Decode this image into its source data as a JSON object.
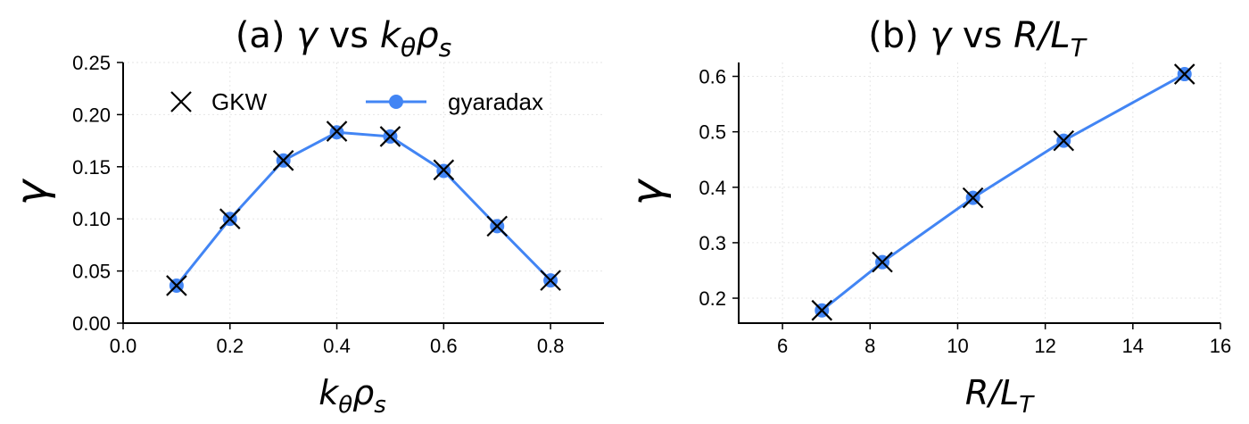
{
  "colors": {
    "line": "#4285f4",
    "marker_x": "#000000"
  },
  "chart_data": [
    {
      "type": "line",
      "title": "(a) γ vs kθρs",
      "title_parts": {
        "prefix": "(a) ",
        "sym": "γ",
        "mid": " vs ",
        "x": "k",
        "x_sub": "θ",
        "x2": "ρ",
        "x2_sub": "s"
      },
      "xlabel_parts": {
        "x": "k",
        "x_sub": "θ",
        "x2": "ρ",
        "x2_sub": "s"
      },
      "ylabel": "γ",
      "xlim": [
        0.0,
        0.9
      ],
      "ylim": [
        0.0,
        0.25
      ],
      "xticks": [
        0.0,
        0.2,
        0.4,
        0.6,
        0.8
      ],
      "xtick_labels": [
        "0.0",
        "0.2",
        "0.4",
        "0.6",
        "0.8"
      ],
      "yticks": [
        0.0,
        0.05,
        0.1,
        0.15,
        0.2,
        0.25
      ],
      "ytick_labels": [
        "0.00",
        "0.05",
        "0.10",
        "0.15",
        "0.20",
        "0.25"
      ],
      "grid": true,
      "legend": {
        "placement": "top",
        "entries": [
          "GKW",
          "gyaradax"
        ]
      },
      "series": [
        {
          "name": "GKW",
          "marker": "x",
          "x": [
            0.1,
            0.2,
            0.3,
            0.4,
            0.5,
            0.6,
            0.7,
            0.8
          ],
          "y": [
            0.036,
            0.1,
            0.156,
            0.184,
            0.179,
            0.147,
            0.093,
            0.041
          ]
        },
        {
          "name": "gyaradax",
          "marker": "o",
          "x": [
            0.1,
            0.2,
            0.3,
            0.4,
            0.5,
            0.6,
            0.7,
            0.8
          ],
          "y": [
            0.036,
            0.1,
            0.156,
            0.183,
            0.179,
            0.146,
            0.093,
            0.041
          ]
        }
      ]
    },
    {
      "type": "line",
      "title": "(b) γ vs R/LT",
      "title_parts": {
        "prefix": "(b) ",
        "sym": "γ",
        "mid": " vs ",
        "x": "R/L",
        "x_sub": "T"
      },
      "xlabel_parts": {
        "x": "R/L",
        "x_sub": "T"
      },
      "ylabel": "γ",
      "xlim": [
        5.0,
        16.0
      ],
      "ylim": [
        0.155,
        0.625
      ],
      "xticks": [
        6,
        8,
        10,
        12,
        14,
        16
      ],
      "xtick_labels": [
        "6",
        "8",
        "10",
        "12",
        "14",
        "16"
      ],
      "yticks": [
        0.2,
        0.3,
        0.4,
        0.5,
        0.6
      ],
      "ytick_labels": [
        "0.2",
        "0.3",
        "0.4",
        "0.5",
        "0.6"
      ],
      "grid": true,
      "series": [
        {
          "name": "GKW",
          "marker": "x",
          "x": [
            6.9,
            8.28,
            10.35,
            12.42,
            15.18
          ],
          "y": [
            0.178,
            0.265,
            0.381,
            0.484,
            0.604
          ]
        },
        {
          "name": "gyaradax",
          "marker": "o",
          "x": [
            6.9,
            8.28,
            10.35,
            12.42,
            15.18
          ],
          "y": [
            0.178,
            0.265,
            0.381,
            0.484,
            0.604
          ]
        }
      ]
    }
  ]
}
